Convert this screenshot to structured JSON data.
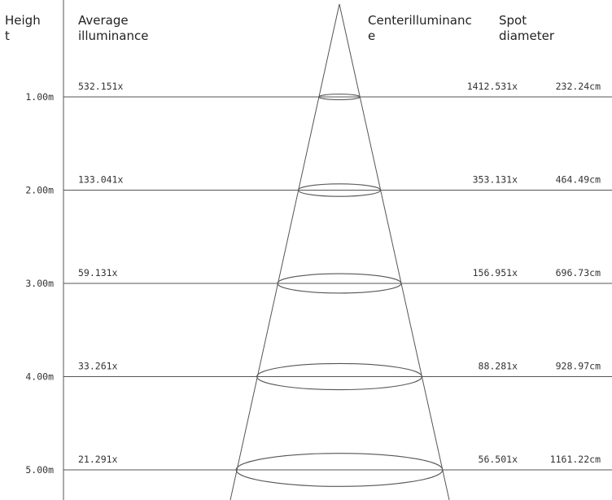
{
  "headers": {
    "height": "Heigh\nt",
    "average": "Average\nilluminance",
    "center": "Centerilluminanc\ne",
    "spot": "Spot\ndiameter"
  },
  "rows": [
    {
      "height": "1.00m",
      "average": "532.151x",
      "center": "1412.531x",
      "spot": "232.24cm"
    },
    {
      "height": "2.00m",
      "average": "133.041x",
      "center": "353.131x",
      "spot": "464.49cm"
    },
    {
      "height": "3.00m",
      "average": "59.131x",
      "center": "156.951x",
      "spot": "696.73cm"
    },
    {
      "height": "4.00m",
      "average": "33.261x",
      "center": "88.281x",
      "spot": "928.97cm"
    },
    {
      "height": "5.00m",
      "average": "21.291x",
      "center": "56.501x",
      "spot": "1161.22cm"
    }
  ],
  "colors": {
    "line": "#555555",
    "text": "#333333",
    "background": "#ffffff"
  }
}
